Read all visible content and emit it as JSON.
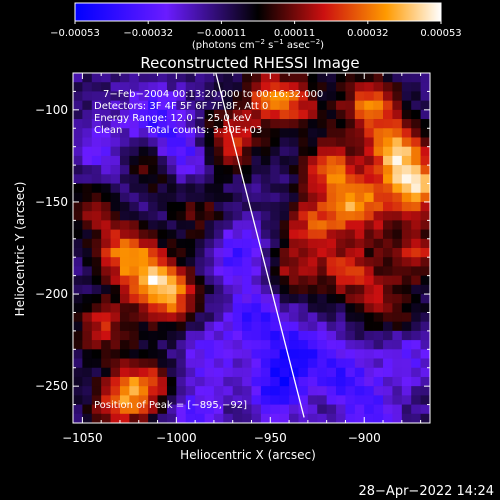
{
  "chart_data": {
    "type": "heatmap",
    "title": "Reconstructed RHESSI Image",
    "xlabel": "Heliocentric X (arcsec)",
    "ylabel": "Heliocentric Y (arcsec)",
    "xlim": [
      -1055,
      -865
    ],
    "ylim": [
      -270,
      -80
    ],
    "x_ticks": [
      -1050,
      -1000,
      -950,
      -900
    ],
    "x_tick_labels": [
      "−1050",
      "−1000",
      "−950",
      "−900"
    ],
    "y_ticks": [
      -100,
      -150,
      -200,
      -250
    ],
    "y_tick_labels": [
      "−100",
      "−150",
      "−200",
      "−250"
    ],
    "colorbar": {
      "range": [
        -0.00053,
        0.00053
      ],
      "ticks": [
        "−0.00053",
        "−0.00032",
        "−0.00011",
        "0.00011",
        "0.00032",
        "0.00053"
      ],
      "units_line1": "(photons cm",
      "units_exp1": "−2",
      "units_line2": " s",
      "units_exp2": "−1",
      "units_line3": " asec",
      "units_exp3": "−2",
      "units_line4": ")",
      "stops": [
        "#0000ff",
        "#6a1cff",
        "#000000",
        "#cc1010",
        "#ff9a00",
        "#ffffff"
      ]
    },
    "annotations": {
      "time_range": "7−Feb−2004 00:13:20.000 to 00:16:32.000",
      "detectors": "Detectors: 3F 4F 5F 6F 7F 8F, Att 0",
      "energy": "Energy Range: 12.0 − 25.0 keV",
      "clean": "Clean",
      "counts": "Total counts: 3.30E+03",
      "peak": "Position of Peak = [−895,−92]"
    },
    "limb_line": {
      "x": [
        -979,
        -932
      ],
      "y": [
        -80,
        -267
      ]
    },
    "blobs": [
      {
        "x": -1020,
        "y": -130,
        "value": 0.00036
      },
      {
        "x": -1030,
        "y": -175,
        "value": 0.00042
      },
      {
        "x": -1015,
        "y": -190,
        "value": 0.00038
      },
      {
        "x": -1042,
        "y": -215,
        "value": 0.0003
      },
      {
        "x": -1005,
        "y": -200,
        "value": 0.00034
      },
      {
        "x": -1020,
        "y": -248,
        "value": 0.00042
      },
      {
        "x": -1035,
        "y": -258,
        "value": 0.00028
      },
      {
        "x": -975,
        "y": -115,
        "value": 0.00035
      },
      {
        "x": -955,
        "y": -90,
        "value": 0.00028
      },
      {
        "x": -940,
        "y": -95,
        "value": 0.0003
      },
      {
        "x": -920,
        "y": -130,
        "value": 0.00038
      },
      {
        "x": -905,
        "y": -150,
        "value": 0.00044
      },
      {
        "x": -885,
        "y": -120,
        "value": 0.00048
      },
      {
        "x": -875,
        "y": -140,
        "value": 0.00053
      },
      {
        "x": -900,
        "y": -95,
        "value": 0.00042
      },
      {
        "x": -930,
        "y": -160,
        "value": 0.00034
      },
      {
        "x": -910,
        "y": -185,
        "value": 0.00032
      },
      {
        "x": -890,
        "y": -205,
        "value": 0.00026
      },
      {
        "x": -875,
        "y": -175,
        "value": 0.0003
      },
      {
        "x": -940,
        "y": -185,
        "value": 0.00026
      },
      {
        "x": -1045,
        "y": -150,
        "value": 0.00024
      },
      {
        "x": -990,
        "y": -155,
        "value": 0.00018
      },
      {
        "x": -985,
        "y": -230,
        "value": -0.00018
      },
      {
        "x": -960,
        "y": -210,
        "value": -0.00028
      },
      {
        "x": -940,
        "y": -230,
        "value": -0.00032
      },
      {
        "x": -950,
        "y": -250,
        "value": -0.0003
      },
      {
        "x": -970,
        "y": -175,
        "value": -0.00026
      },
      {
        "x": -1000,
        "y": -120,
        "value": -0.00028
      },
      {
        "x": -1015,
        "y": -100,
        "value": -0.00024
      },
      {
        "x": -1040,
        "y": -120,
        "value": -0.00018
      },
      {
        "x": -1028,
        "y": -140,
        "value": -0.0002
      },
      {
        "x": -915,
        "y": -240,
        "value": -0.00024
      },
      {
        "x": -900,
        "y": -260,
        "value": -0.00022
      },
      {
        "x": -880,
        "y": -230,
        "value": -0.00018
      },
      {
        "x": -995,
        "y": -260,
        "value": -0.0002
      }
    ]
  },
  "footer": {
    "timestamp": "28−Apr−2022 14:24"
  }
}
